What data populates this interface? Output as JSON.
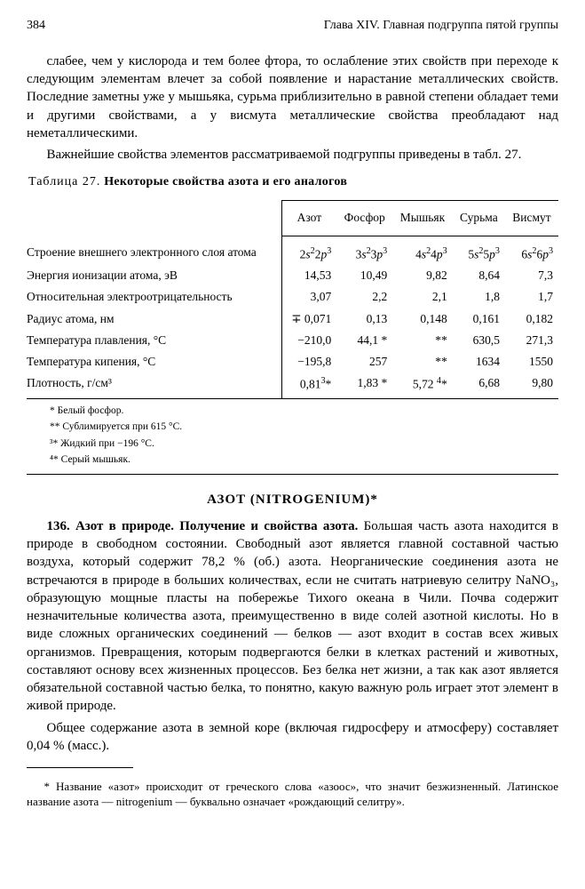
{
  "header": {
    "page_number": "384",
    "running_title": "Глава XIV. Главная подгруппа пятой группы"
  },
  "paragraphs": {
    "p1": "слабее, чем у кислорода и тем более фтора, то ослабление этих свойств при переходе к следующим элементам влечет за собой появление и нарастание металлических свойств. Последние заметны уже у мышьяка, сурьма приблизительно в равной степени обладает теми и другими свойствами, а у висмута металлические свойства преобладают над неметаллическими.",
    "p2": "Важнейшие свойства элементов рассматриваемой подгруппы приведены в табл. 27."
  },
  "table": {
    "caption_prefix": "Таблица 27.",
    "caption_title": "Некоторые свойства азота и его аналогов",
    "columns": [
      "Азот",
      "Фосфор",
      "Мышьяк",
      "Сурьма",
      "Висмут"
    ],
    "rows": [
      {
        "label": "Строение внешнего электронного слоя атома",
        "vals_html": [
          "2<i>s</i><sup>2</sup>2<i>p</i><sup>3</sup>",
          "3<i>s</i><sup>2</sup>3<i>p</i><sup>3</sup>",
          "4<i>s</i><sup>2</sup>4<i>p</i><sup>3</sup>",
          "5<i>s</i><sup>2</sup>5<i>p</i><sup>3</sup>",
          "6<i>s</i><sup>2</sup>6<i>p</i><sup>3</sup>"
        ]
      },
      {
        "label": "Энергия ионизации атома, эВ",
        "vals_html": [
          "14,53",
          "10,49",
          "9,82",
          "8,64",
          "7,3"
        ]
      },
      {
        "label": "Относительная электроотрицательность",
        "vals_html": [
          "3,07",
          "2,2",
          "2,1",
          "1,8",
          "1,7"
        ]
      },
      {
        "label": "Радиус атома, нм",
        "vals_html": [
          "∓ 0,071",
          "0,13",
          "0,148",
          "0,161",
          "0,182"
        ]
      },
      {
        "label": "Температура плавления, °C",
        "vals_html": [
          "−210,0",
          "44,1&nbsp;*",
          "**",
          "630,5",
          "271,3"
        ]
      },
      {
        "label": "Температура кипения, °C",
        "vals_html": [
          "−195,8",
          "257",
          "**",
          "1634",
          "1550"
        ]
      },
      {
        "label": "Плотность, г/см³",
        "vals_html": [
          "0,81<sup>3</sup>*",
          "1,83&nbsp;*",
          "5,72&nbsp;<sup>4</sup>*",
          "6,68",
          "9,80"
        ]
      }
    ],
    "notes": [
      "* Белый фосфор.",
      "** Сублимируется при 615 °C.",
      "³* Жидкий при −196 °C.",
      "⁴* Серый мышьяк."
    ]
  },
  "section": {
    "title": "АЗОТ (NITROGENIUM)*",
    "num": "136.",
    "heading": "Азот в природе. Получение и свойства азота.",
    "body1": "Большая часть азота находится в природе в свободном состоянии. Свободный азот является главной составной частью воздуха, который содержит 78,2 % (об.) азота. Неорганические соединения азота не встречаются в природе в больших количествах, если не считать натриевую селитру NaNO₃, образующую мощные пласты на побережье Тихого океана в Чили. Почва содержит незначительные количества азота, преимущественно в виде солей азотной кислоты. Но в виде сложных органических соединений — белков — азот входит в состав всех живых организмов. Превращения, которым подвергаются белки в клетках растений и животных, составляют основу всех жизненных процессов. Без белка нет жизни, а так как азот является обязательной составной частью белка, то понятно, какую важную роль играет этот элемент в живой природе.",
    "body2": "Общее содержание азота в земной коре (включая гидросферу и атмосферу) составляет 0,04 % (масс.)."
  },
  "footnote": {
    "text": "* Название «азот» происходит от греческого слова «азоос», что значит безжизненный. Латинское название азота — nitrogenium — буквально означает «рождающий селитру»."
  },
  "style": {
    "font_family": "Times New Roman",
    "text_color": "#000000",
    "background_color": "#ffffff",
    "body_fontsize_pt": 11,
    "header_fontsize_pt": 10,
    "table_fontsize_pt": 10,
    "note_fontsize_pt": 8.5,
    "rule_color": "#000000"
  }
}
